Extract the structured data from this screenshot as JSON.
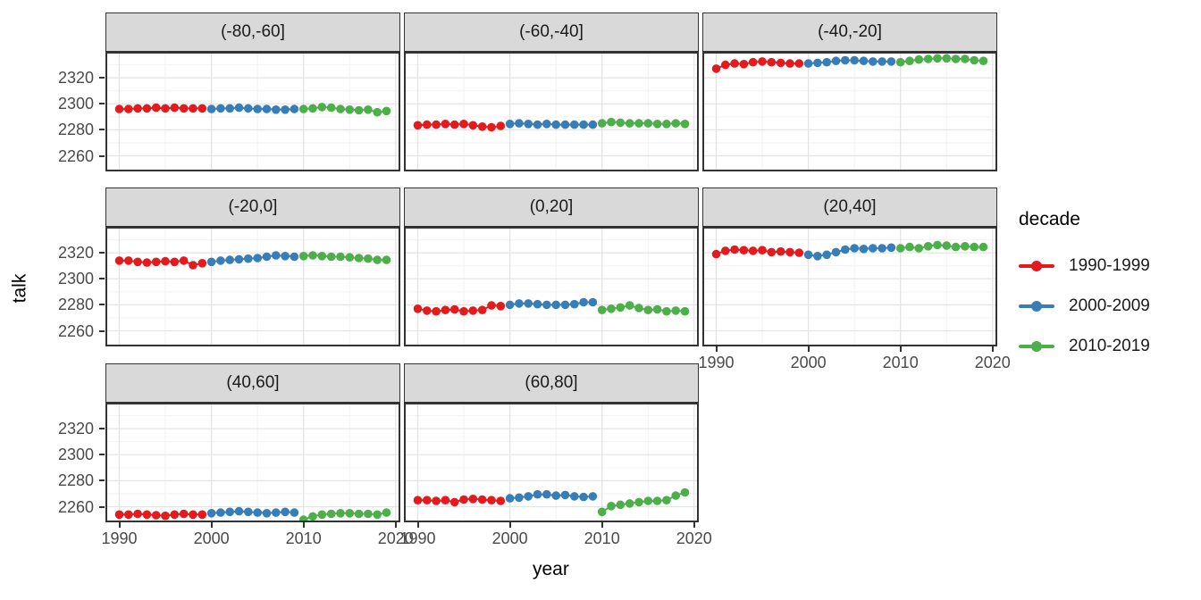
{
  "figure": {
    "ylabel": "talk",
    "xlabel": "year",
    "legend": {
      "title": "decade",
      "entries": [
        {
          "label": "1990-1999",
          "color": "#E41A1C"
        },
        {
          "label": "2000-2009",
          "color": "#377EB8"
        },
        {
          "label": "2010-2019",
          "color": "#4DAF4A"
        }
      ]
    }
  },
  "chart_data": {
    "type": "scatter",
    "title": "",
    "xlabel": "year",
    "ylabel": "talk",
    "legend_title": "decade",
    "legend_position": "right",
    "grid": true,
    "xlim": [
      1988.5,
      2020.5
    ],
    "ylim": [
      2248,
      2340
    ],
    "x_ticks": [
      1990,
      2000,
      2010,
      2020
    ],
    "y_ticks": [
      2320,
      2300,
      2280,
      2260
    ],
    "x_minor_ticks": [
      1995,
      2005,
      2015
    ],
    "y_minor_ticks": [
      2250,
      2270,
      2290,
      2310,
      2330
    ],
    "series_colors": {
      "1990-1999": "#E41A1C",
      "2000-2009": "#377EB8",
      "2010-2019": "#4DAF4A"
    },
    "years_by_decade": {
      "1990-1999": [
        1990,
        1991,
        1992,
        1993,
        1994,
        1995,
        1996,
        1997,
        1998,
        1999
      ],
      "2000-2009": [
        2000,
        2001,
        2002,
        2003,
        2004,
        2005,
        2006,
        2007,
        2008,
        2009
      ],
      "2010-2019": [
        2010,
        2011,
        2012,
        2013,
        2014,
        2015,
        2016,
        2017,
        2018,
        2019
      ]
    },
    "facets": [
      {
        "label": "(-80,-60]",
        "series": [
          {
            "name": "1990-1999",
            "y": [
              2296,
              2296,
              2296.5,
              2296.5,
              2297,
              2296.5,
              2297,
              2296.5,
              2296.5,
              2296.5
            ]
          },
          {
            "name": "2000-2009",
            "y": [
              2296,
              2296.5,
              2296.5,
              2297,
              2296.5,
              2296,
              2296,
              2295.5,
              2295.5,
              2296
            ]
          },
          {
            "name": "2010-2019",
            "y": [
              2296,
              2296.5,
              2297.5,
              2297,
              2296,
              2295.5,
              2295,
              2295.5,
              2293.5,
              2294.5
            ]
          }
        ]
      },
      {
        "label": "(-60,-40]",
        "series": [
          {
            "name": "1990-1999",
            "y": [
              2283.5,
              2284,
              2284,
              2284.5,
              2284,
              2284.5,
              2283.5,
              2282.5,
              2282,
              2283
            ]
          },
          {
            "name": "2000-2009",
            "y": [
              2284.5,
              2285,
              2284.5,
              2284,
              2284.5,
              2284,
              2284,
              2284,
              2284,
              2284
            ]
          },
          {
            "name": "2010-2019",
            "y": [
              2285,
              2286,
              2285.5,
              2285,
              2285,
              2285,
              2284.5,
              2284.5,
              2285,
              2284.5
            ]
          }
        ]
      },
      {
        "label": "(-40,-20]",
        "series": [
          {
            "name": "1990-1999",
            "y": [
              2327,
              2330,
              2331,
              2330.5,
              2332,
              2332.5,
              2332,
              2331.5,
              2331,
              2331
            ]
          },
          {
            "name": "2000-2009",
            "y": [
              2331,
              2331.5,
              2332,
              2333,
              2333.5,
              2333.5,
              2333,
              2332.5,
              2332.5,
              2332.5
            ]
          },
          {
            "name": "2010-2019",
            "y": [
              2332,
              2333,
              2334,
              2334.5,
              2335,
              2335,
              2334.5,
              2334.5,
              2333.5,
              2333
            ]
          }
        ]
      },
      {
        "label": "(-20,0]",
        "series": [
          {
            "name": "1990-1999",
            "y": [
              2314,
              2314,
              2313,
              2312.5,
              2313,
              2313.5,
              2313,
              2314,
              2310.5,
              2312
            ]
          },
          {
            "name": "2000-2009",
            "y": [
              2313,
              2314,
              2314.5,
              2315,
              2315.5,
              2316,
              2317,
              2318,
              2317.5,
              2317
            ]
          },
          {
            "name": "2010-2019",
            "y": [
              2317.5,
              2318,
              2317.5,
              2317,
              2317,
              2316.5,
              2316,
              2315.5,
              2314.5,
              2314.5
            ]
          }
        ]
      },
      {
        "label": "(0,20]",
        "series": [
          {
            "name": "1990-1999",
            "y": [
              2277,
              2275.5,
              2275,
              2276,
              2276.5,
              2275,
              2275.5,
              2276,
              2279.5,
              2279
            ]
          },
          {
            "name": "2000-2009",
            "y": [
              2280,
              2281,
              2281,
              2280.5,
              2280,
              2280,
              2280,
              2280.5,
              2282,
              2282
            ]
          },
          {
            "name": "2010-2019",
            "y": [
              2276,
              2277,
              2278,
              2279.5,
              2277.5,
              2276,
              2276.5,
              2275,
              2275.5,
              2275
            ]
          }
        ]
      },
      {
        "label": "(20,40]",
        "series": [
          {
            "name": "1990-1999",
            "y": [
              2319,
              2321.5,
              2322.5,
              2322,
              2321.5,
              2322,
              2320.5,
              2321,
              2320.5,
              2320
            ]
          },
          {
            "name": "2000-2009",
            "y": [
              2318.5,
              2317.5,
              2318.5,
              2320.5,
              2322.5,
              2323.5,
              2323,
              2323.5,
              2323.5,
              2324
            ]
          },
          {
            "name": "2010-2019",
            "y": [
              2323.5,
              2324.5,
              2323.5,
              2325,
              2326,
              2325.5,
              2324.5,
              2325,
              2324.5,
              2324.5
            ]
          }
        ]
      },
      {
        "label": "(40,60]",
        "series": [
          {
            "name": "1990-1999",
            "y": [
              2254,
              2254,
              2254.5,
              2254,
              2253.5,
              2253,
              2254,
              2254.5,
              2254,
              2254
            ]
          },
          {
            "name": "2000-2009",
            "y": [
              2255,
              2255.5,
              2256,
              2256.5,
              2256,
              2255.5,
              2255,
              2255.5,
              2256,
              2255.5
            ]
          },
          {
            "name": "2010-2019",
            "y": [
              2250,
              2252.5,
              2254,
              2254.5,
              2255,
              2255,
              2254.5,
              2254.5,
              2254,
              2255.5
            ]
          }
        ]
      },
      {
        "label": "(60,80]",
        "series": [
          {
            "name": "1990-1999",
            "y": [
              2265,
              2265,
              2264.5,
              2265,
              2263.5,
              2265.5,
              2266,
              2265.5,
              2265,
              2264.5
            ]
          },
          {
            "name": "2000-2009",
            "y": [
              2266.5,
              2267,
              2268,
              2269.5,
              2269.5,
              2268.5,
              2269,
              2268,
              2267.5,
              2268
            ]
          },
          {
            "name": "2010-2019",
            "y": [
              2256,
              2260.5,
              2261.5,
              2262.5,
              2263.5,
              2264.5,
              2264.5,
              2265,
              2268.5,
              2271
            ]
          }
        ]
      }
    ]
  },
  "colors": {
    "strip_fill": "#d9d9d9",
    "panel_border": "#333333",
    "grid_major": "#e4e4e4",
    "grid_minor": "#f2f2f2",
    "tick_label": "#4a4a4a"
  }
}
